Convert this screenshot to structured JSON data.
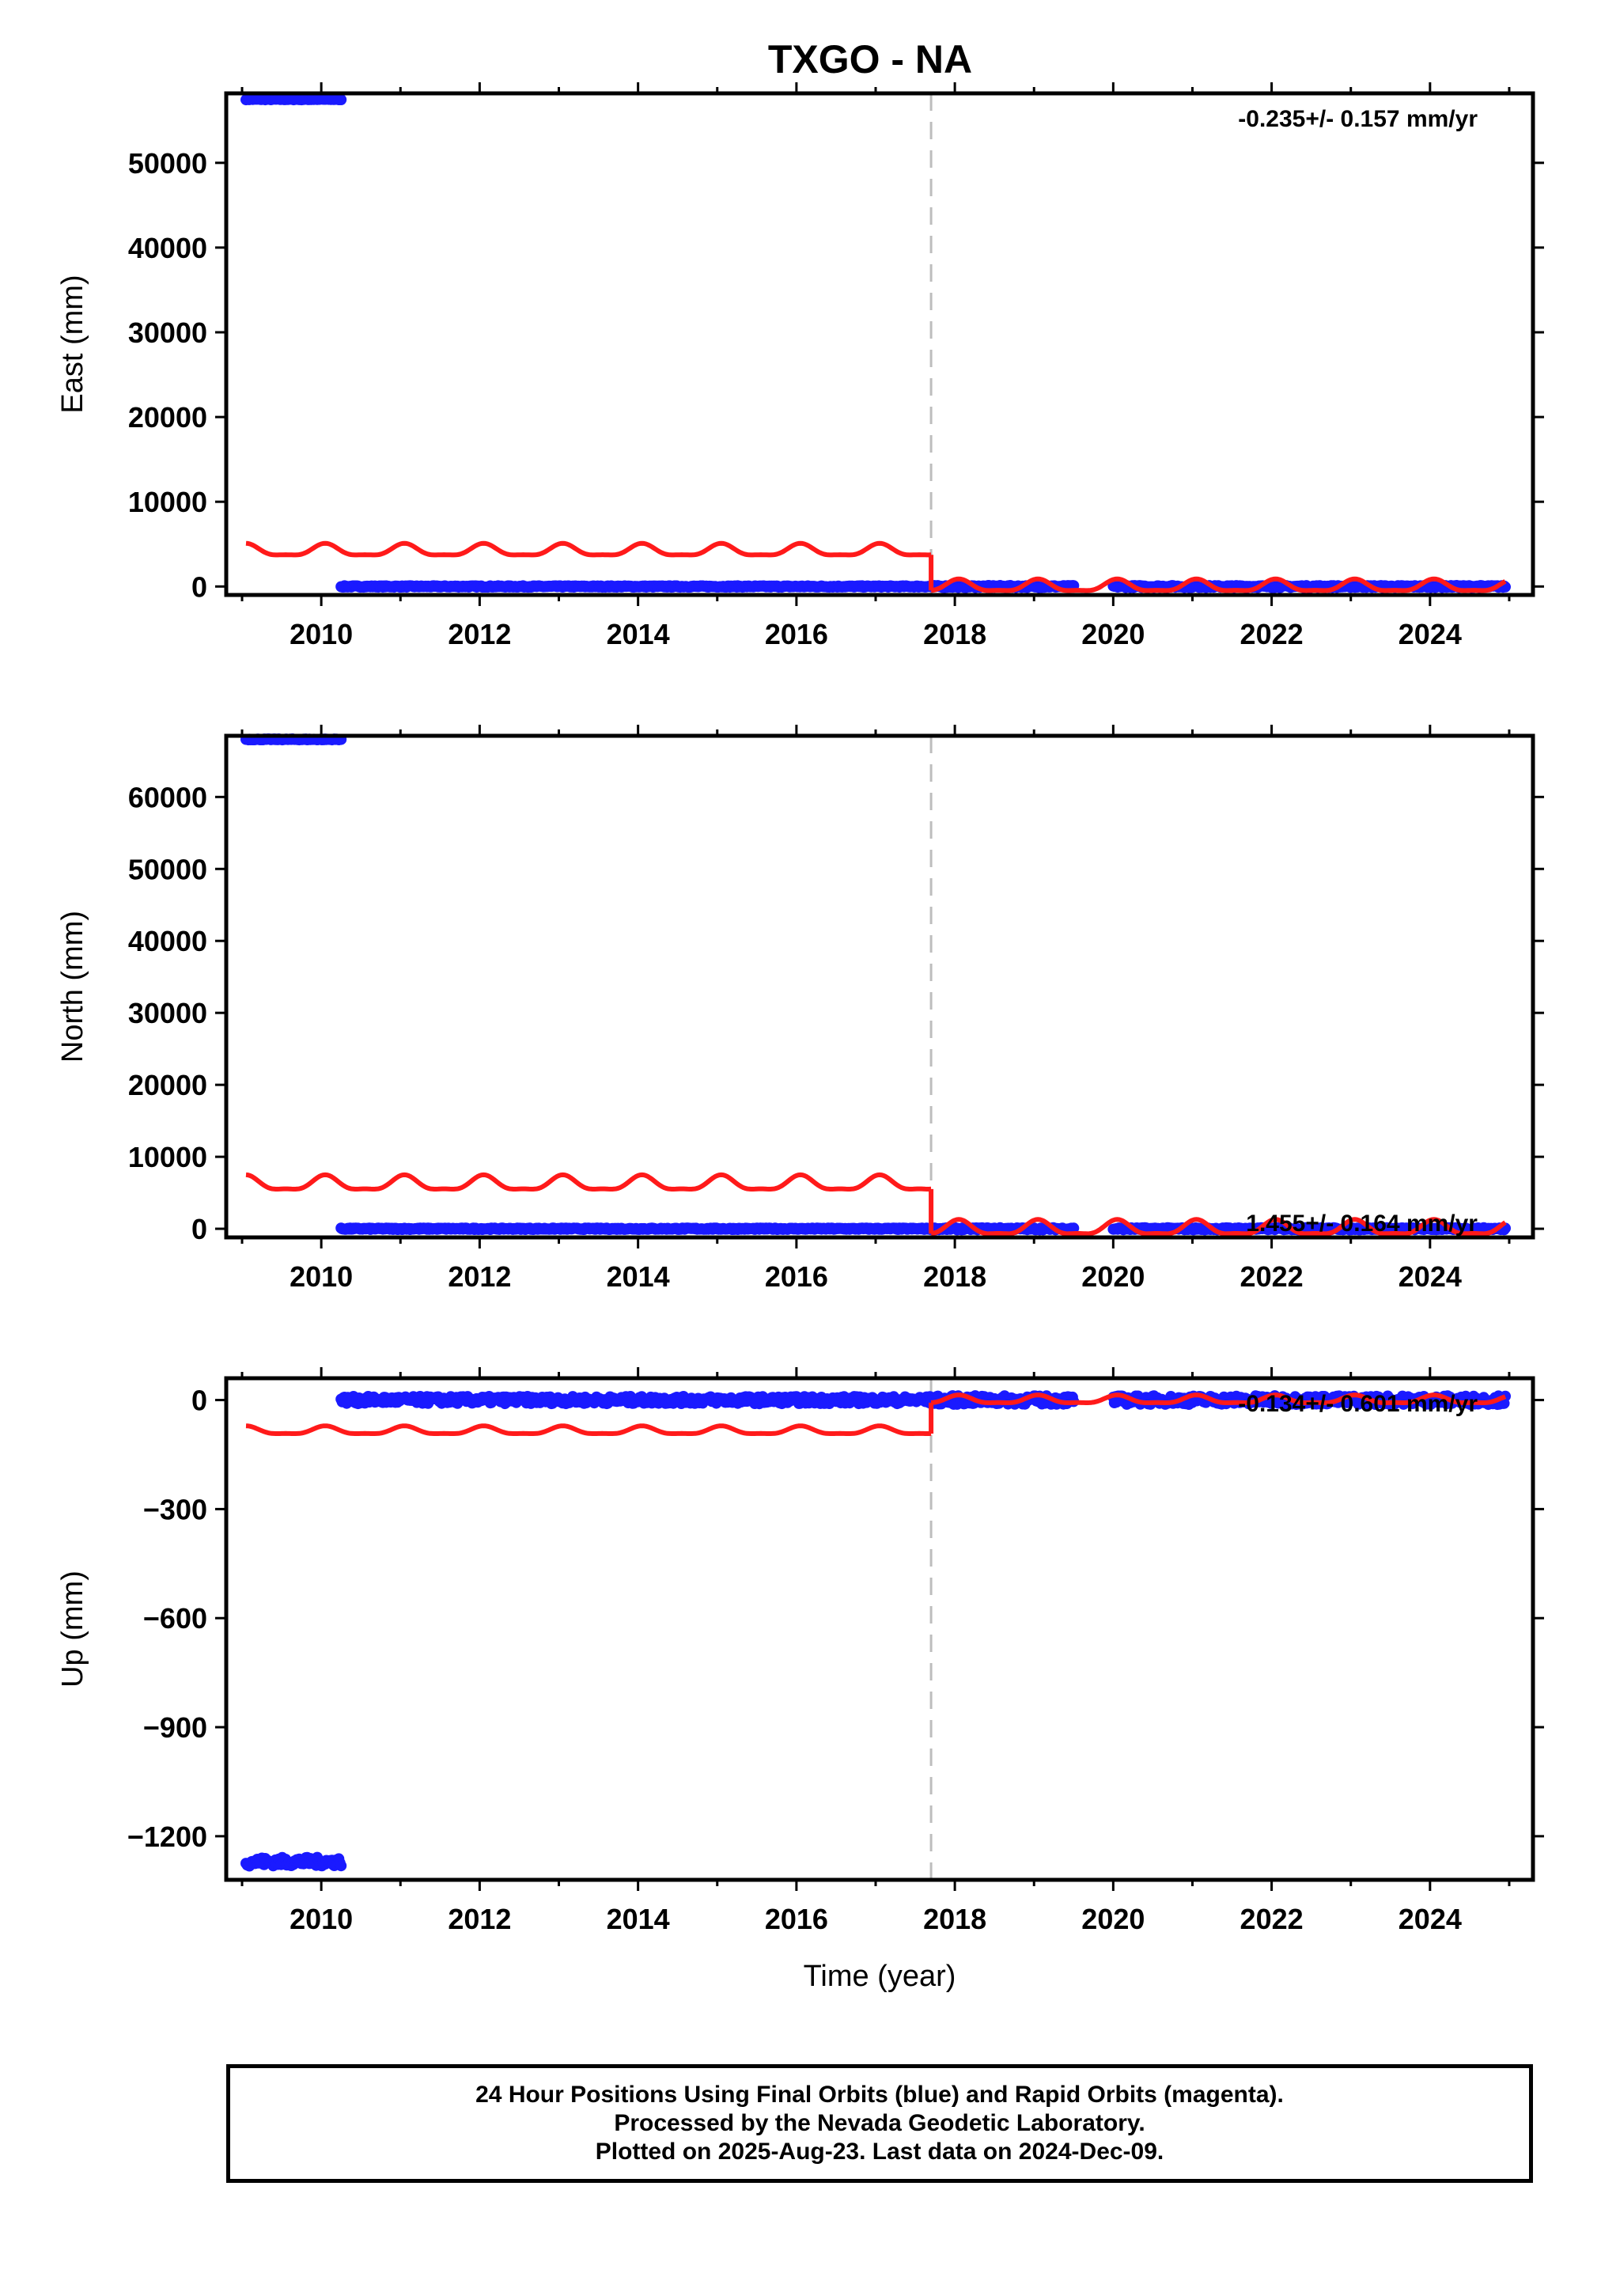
{
  "title": "TXGO - NA",
  "colors": {
    "final": "#1a1aff",
    "model": "#ff1a1a",
    "event": "#bdbdbd",
    "frame": "#000000"
  },
  "footer": {
    "line1": "24 Hour Positions Using Final Orbits (blue) and Rapid Orbits (magenta).",
    "line2": "Processed by the Nevada Geodetic Laboratory.",
    "line3": "Plotted on 2025-Aug-23. Last data on 2024-Dec-09."
  },
  "chart_data": [
    {
      "type": "scatter",
      "ylabel": "East (mm)",
      "xlabel": "",
      "rate": "-0.235+/- 0.157 mm/yr",
      "xlim": [
        2008.8,
        2025.3
      ],
      "ylim": [
        -1000,
        58200
      ],
      "xticks": [
        "2010",
        "2012",
        "2014",
        "2016",
        "2018",
        "2020",
        "2022",
        "2024"
      ],
      "yticks": [
        "0",
        "10000",
        "20000",
        "30000",
        "40000",
        "50000"
      ],
      "event_x": 2017.7,
      "final_segments": [
        {
          "x": [
            2009.05,
            2010.25
          ],
          "y": 57500,
          "noise": 60
        },
        {
          "x": [
            2010.25,
            2017.7
          ],
          "y": 0,
          "noise": 80
        },
        {
          "x": [
            2017.7,
            2019.5
          ],
          "y": 0,
          "noise": 120
        },
        {
          "x": [
            2020.0,
            2024.95
          ],
          "y": 0,
          "noise": 120
        }
      ],
      "model_segments": [
        {
          "x": [
            2009.05,
            2017.7
          ],
          "base": 4200,
          "amp": 900
        },
        {
          "x": [
            2017.7,
            2024.95
          ],
          "base": 0,
          "amp": 900
        }
      ]
    },
    {
      "type": "scatter",
      "ylabel": "North (mm)",
      "xlabel": "",
      "rate": "1.455+/- 0.164 mm/yr",
      "xlim": [
        2008.8,
        2025.3
      ],
      "ylim": [
        -1200,
        68500
      ],
      "xticks": [
        "2010",
        "2012",
        "2014",
        "2016",
        "2018",
        "2020",
        "2022",
        "2024"
      ],
      "yticks": [
        "0",
        "10000",
        "20000",
        "30000",
        "40000",
        "50000",
        "60000"
      ],
      "event_x": 2017.7,
      "final_segments": [
        {
          "x": [
            2009.05,
            2010.25
          ],
          "y": 68000,
          "noise": 60
        },
        {
          "x": [
            2010.25,
            2017.7
          ],
          "y": 0,
          "noise": 100
        },
        {
          "x": [
            2017.7,
            2019.5
          ],
          "y": 0,
          "noise": 150
        },
        {
          "x": [
            2020.0,
            2024.95
          ],
          "y": 0,
          "noise": 150
        }
      ],
      "model_segments": [
        {
          "x": [
            2009.05,
            2017.7
          ],
          "base": 6200,
          "amp": 1300
        },
        {
          "x": [
            2017.7,
            2024.95
          ],
          "base": 0,
          "amp": 1300
        }
      ]
    },
    {
      "type": "scatter",
      "ylabel": "Up (mm)",
      "xlabel": "Time (year)",
      "rate": "-0.134+/- 0.601 mm/yr",
      "xlim": [
        2008.8,
        2025.3
      ],
      "ylim": [
        -1320,
        60
      ],
      "xticks": [
        "2010",
        "2012",
        "2014",
        "2016",
        "2018",
        "2020",
        "2022",
        "2024"
      ],
      "yticks": [
        "0",
        "−300",
        "−600",
        "−900",
        "−1200"
      ],
      "yticks_values": [
        0,
        -300,
        -600,
        -900,
        -1200
      ],
      "event_x": 2017.7,
      "final_segments": [
        {
          "x": [
            2009.05,
            2010.25
          ],
          "y": -1270,
          "noise": 12
        },
        {
          "x": [
            2010.25,
            2017.7
          ],
          "y": 0,
          "noise": 10
        },
        {
          "x": [
            2017.7,
            2019.5
          ],
          "y": 0,
          "noise": 12
        },
        {
          "x": [
            2020.0,
            2024.95
          ],
          "y": 0,
          "noise": 12
        }
      ],
      "model_segments": [
        {
          "x": [
            2009.05,
            2017.7
          ],
          "base": -85,
          "amp": 14
        },
        {
          "x": [
            2017.7,
            2024.95
          ],
          "base": 0,
          "amp": 14
        }
      ]
    }
  ]
}
